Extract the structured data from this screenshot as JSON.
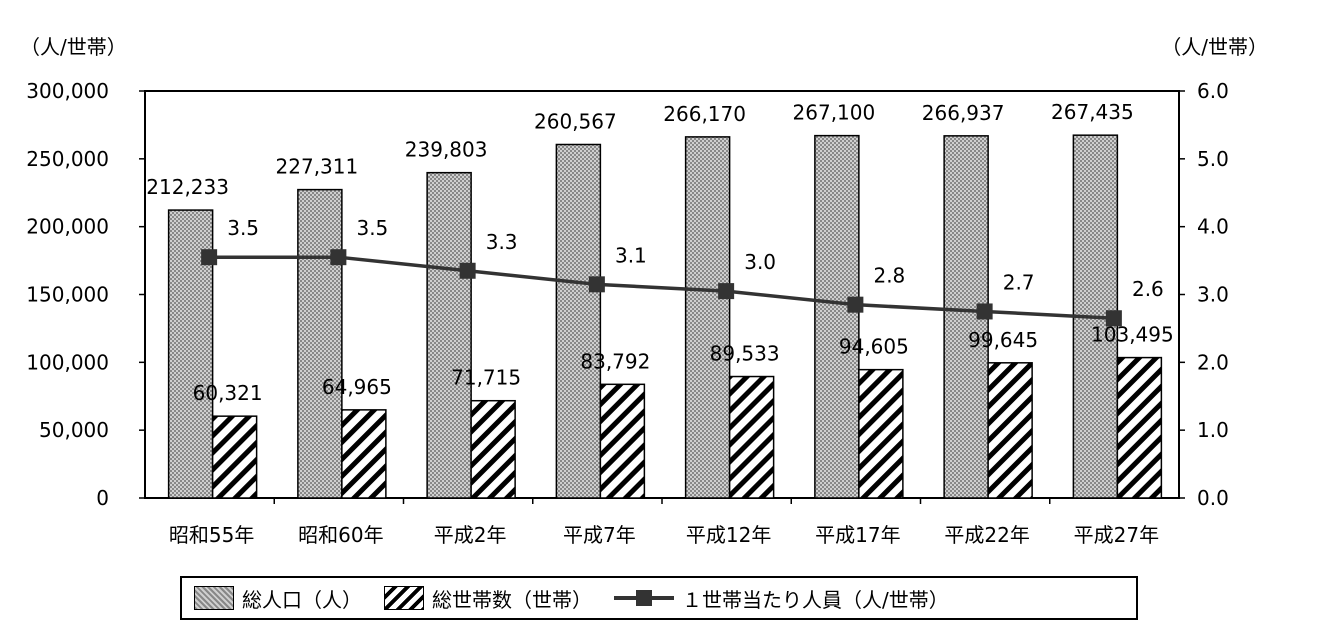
{
  "chart_data": {
    "type": "bar",
    "categories": [
      "昭和55年",
      "昭和60年",
      "平成2年",
      "平成7年",
      "平成12年",
      "平成17年",
      "平成22年",
      "平成27年"
    ],
    "series": [
      {
        "name": "総人口（人）",
        "values": [
          212233,
          227311,
          239803,
          260567,
          266170,
          267100,
          266937,
          267435
        ],
        "labels": [
          "212,233",
          "227,311",
          "239,803",
          "260,567",
          "266,170",
          "267,100",
          "266,937",
          "267,435"
        ],
        "axis": "left"
      },
      {
        "name": "総世帯数（世帯）",
        "values": [
          60321,
          64965,
          71715,
          83792,
          89533,
          94605,
          99645,
          103495
        ],
        "labels": [
          "60,321",
          "64,965",
          "71,715",
          "83,792",
          "89,533",
          "94,605",
          "99,645",
          "103,495"
        ],
        "axis": "left"
      },
      {
        "name": "１世帯当たり人員（人/世帯）",
        "type": "line",
        "values": [
          3.5,
          3.5,
          3.3,
          3.1,
          3.0,
          2.8,
          2.7,
          2.6
        ],
        "labels": [
          "3.5",
          "3.5",
          "3.3",
          "3.1",
          "3.0",
          "2.8",
          "2.7",
          "2.6"
        ],
        "axis": "right"
      }
    ],
    "left_axis": {
      "unit": "（人/世帯）",
      "ylim": [
        0,
        300000
      ],
      "ticks": [
        0,
        50000,
        100000,
        150000,
        200000,
        250000,
        300000
      ],
      "tick_labels": [
        "0",
        "50,000",
        "100,000",
        "150,000",
        "200,000",
        "250,000",
        "300,000"
      ]
    },
    "right_axis": {
      "unit": "（人/世帯）",
      "ylim": [
        0,
        6
      ],
      "ticks": [
        0,
        1,
        2,
        3,
        4,
        5,
        6
      ],
      "tick_labels": [
        "0.0",
        "1.0",
        "2.0",
        "3.0",
        "4.0",
        "5.0",
        "6.0"
      ]
    },
    "grid": false,
    "legend_position": "bottom",
    "colors": {
      "line": "#333333",
      "bar_total_dark": "#888888",
      "bar_total_light": "#cfcfcf",
      "hatch": "#000000"
    }
  },
  "legend": {
    "total_label": "総人口（人）",
    "households_label": "総世帯数（世帯）",
    "per_household_label": "１世帯当たり人員（人/世帯）"
  }
}
